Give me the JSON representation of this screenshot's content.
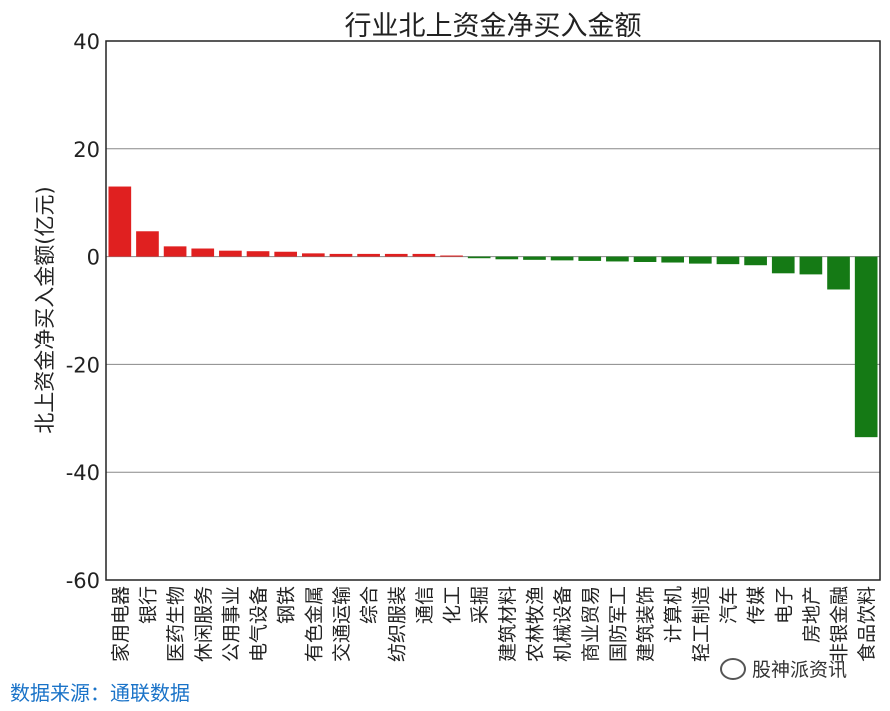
{
  "chart_data": {
    "type": "bar",
    "title": "行业北上资金净买入金额",
    "ylabel": "北上资金净买入金额(亿元)",
    "xlabel": "",
    "ylim": [
      -60,
      40
    ],
    "yticks": [
      40,
      20,
      0,
      -20,
      -40,
      -60
    ],
    "grid": "horizontal",
    "categories": [
      "家用电器",
      "银行",
      "医药生物",
      "休闲服务",
      "公用事业",
      "电气设备",
      "钢铁",
      "有色金属",
      "交通运输",
      "综合",
      "纺织服装",
      "通信",
      "化工",
      "采掘",
      "建筑材料",
      "农林牧渔",
      "机械设备",
      "商业贸易",
      "国防军工",
      "建筑装饰",
      "计算机",
      "轻工制造",
      "汽车",
      "传媒",
      "电子",
      "房地产",
      "非银金融",
      "食品饮料"
    ],
    "values": [
      13.0,
      4.7,
      1.9,
      1.5,
      1.1,
      1.0,
      0.9,
      0.6,
      0.5,
      0.5,
      0.5,
      0.5,
      0.2,
      -0.3,
      -0.5,
      -0.6,
      -0.7,
      -0.8,
      -0.9,
      -1.0,
      -1.1,
      -1.3,
      -1.4,
      -1.6,
      -3.1,
      -3.3,
      -6.1,
      -33.5
    ],
    "colors": {
      "positive": "#e02020",
      "negative": "#157a15"
    }
  },
  "footer": {
    "source": "数据来源：通联数据",
    "watermark": "股神派资讯"
  }
}
